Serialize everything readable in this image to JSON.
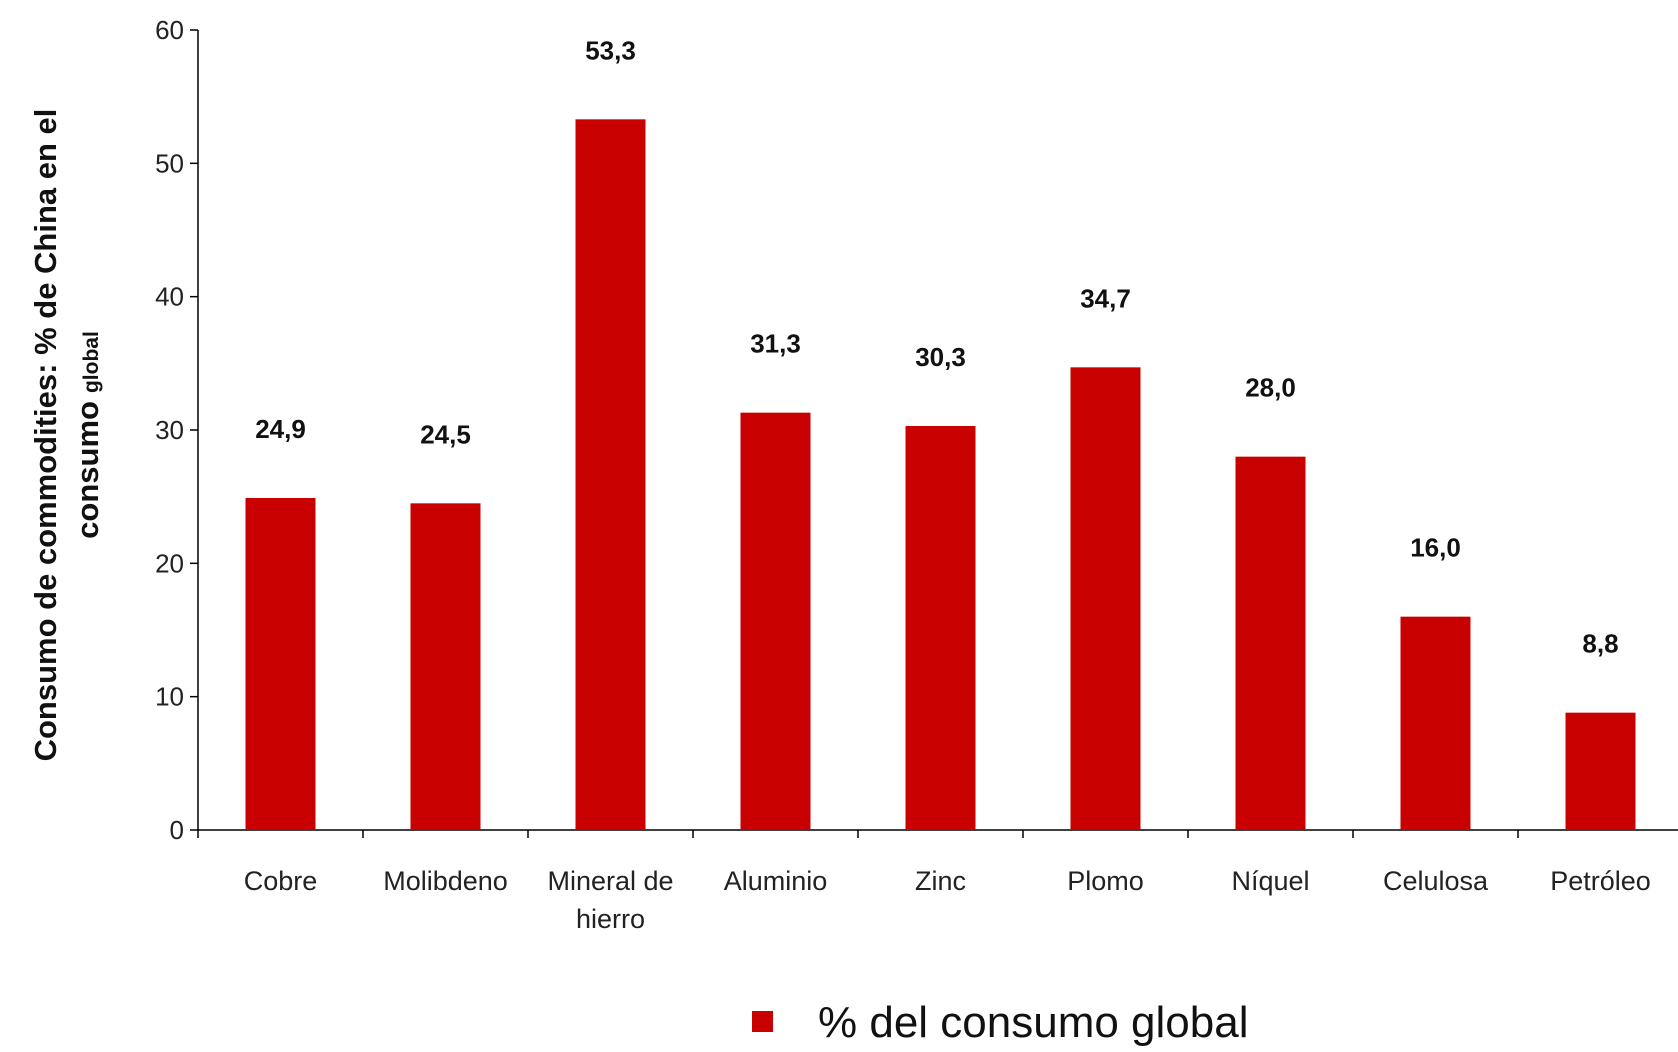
{
  "colors": {
    "bar": "#c80000",
    "axis": "#000000"
  },
  "legend": {
    "label": "% del consumo global"
  },
  "axis": {
    "ylabel_main_line1": "Consumo de commodities: % de China en el",
    "ylabel_main_line2": "consumo",
    "ylabel_small": "global"
  },
  "chart_data": {
    "type": "bar",
    "title": "",
    "xlabel": "",
    "ylabel": "Consumo de commodities: % de China en el consumo global",
    "ylim": [
      0,
      60
    ],
    "yticks": [
      "0",
      "10",
      "20",
      "30",
      "40",
      "50",
      "60"
    ],
    "categories": [
      [
        "Cobre"
      ],
      [
        "Molibdeno"
      ],
      [
        "Mineral de",
        "hierro"
      ],
      [
        "Aluminio"
      ],
      [
        "Zinc"
      ],
      [
        "Plomo"
      ],
      [
        "Níquel"
      ],
      [
        "Celulosa"
      ],
      [
        "Petróleo"
      ]
    ],
    "series": [
      {
        "name": "% del consumo global",
        "values": [
          24.9,
          24.5,
          53.3,
          31.3,
          30.3,
          34.7,
          28.0,
          16.0,
          8.8
        ],
        "labels": [
          "24,9",
          "24,5",
          "53,3",
          "31,3",
          "30,3",
          "34,7",
          "28,0",
          "16,0",
          "8,8"
        ]
      }
    ],
    "grid": false,
    "legend_position": "bottom-center"
  }
}
